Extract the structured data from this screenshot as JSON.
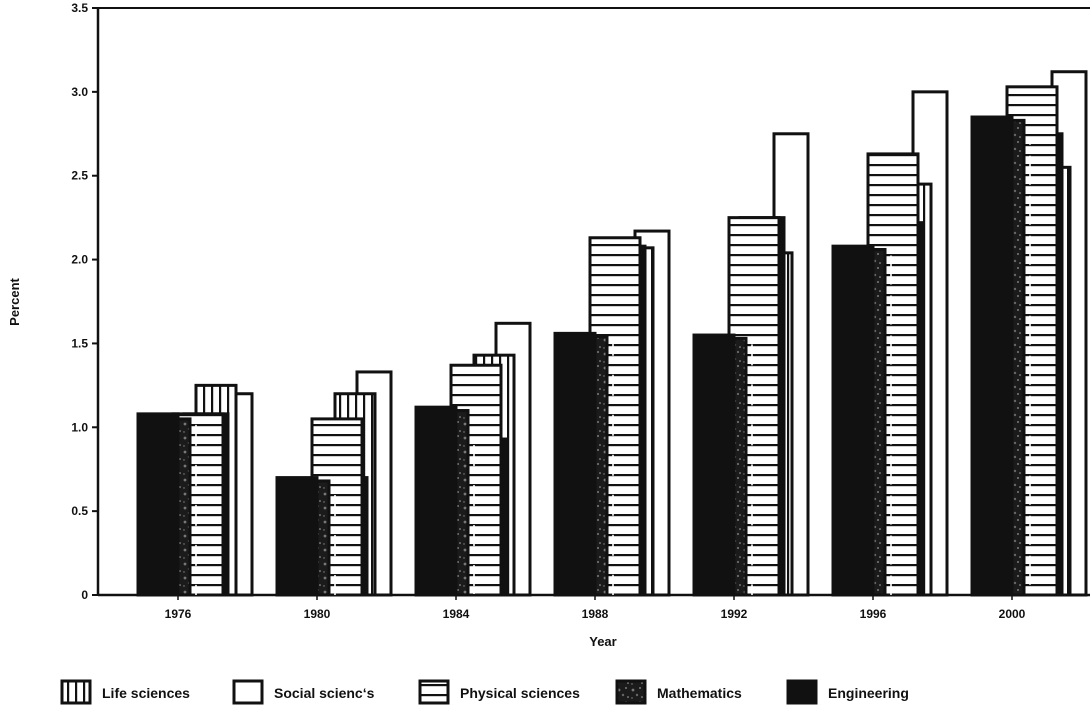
{
  "chart_data": {
    "type": "bar",
    "title": "",
    "xlabel": "Year",
    "ylabel": "Percent",
    "ylim": [
      0,
      3.5
    ],
    "yticks": [
      "0",
      "0.5",
      "1.0",
      "1.5",
      "2.0",
      "2.5",
      "3.0",
      "3.5"
    ],
    "categories": [
      "1976",
      "1980",
      "1984",
      "1988",
      "1992",
      "1996",
      "2000"
    ],
    "grid": false,
    "legend_position": "bottom",
    "series": [
      {
        "name": "Engineering",
        "pattern": "solid",
        "values": [
          1.08,
          0.7,
          1.12,
          1.56,
          1.55,
          2.08,
          2.85
        ]
      },
      {
        "name": "Mathematics",
        "pattern": "speckled",
        "values": [
          1.05,
          0.68,
          1.1,
          1.54,
          1.53,
          2.06,
          2.83
        ]
      },
      {
        "name": "Physical sciences",
        "pattern": "horizontal-lines",
        "values": [
          1.08,
          1.05,
          1.37,
          2.13,
          2.25,
          2.63,
          3.03
        ]
      },
      {
        "name": "Engineering",
        "pattern": "solid",
        "values": [
          1.08,
          0.7,
          0.93,
          2.08,
          2.25,
          2.22,
          2.75
        ]
      },
      {
        "name": "Life sciences",
        "pattern": "vertical-lines",
        "values": [
          1.25,
          1.2,
          1.43,
          2.07,
          2.04,
          2.45,
          2.55
        ]
      },
      {
        "name": "Social sciences",
        "pattern": "outline",
        "values": [
          1.2,
          1.33,
          1.62,
          2.17,
          2.75,
          3.0,
          3.12
        ]
      }
    ],
    "legend": [
      {
        "label": "Life sciences",
        "pattern": "vertical-lines"
      },
      {
        "label": "Social scienc‘s",
        "pattern": "outline"
      },
      {
        "label": "Physical sciences",
        "pattern": "horizontal-lines"
      },
      {
        "label": "Mathematics",
        "pattern": "speckled"
      },
      {
        "label": "Engineering",
        "pattern": "solid"
      }
    ],
    "colors": {
      "ink": "#111111",
      "paper": "#ffffff",
      "speckle": "#555555"
    }
  }
}
